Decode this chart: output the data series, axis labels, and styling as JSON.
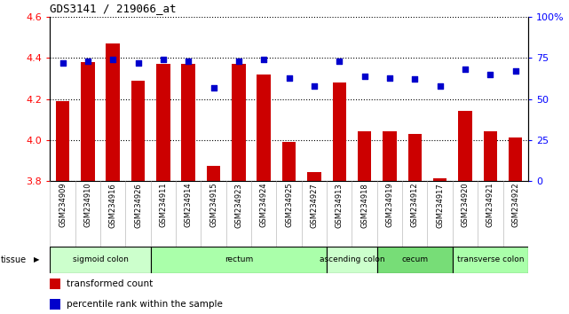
{
  "title": "GDS3141 / 219066_at",
  "samples": [
    "GSM234909",
    "GSM234910",
    "GSM234916",
    "GSM234926",
    "GSM234911",
    "GSM234914",
    "GSM234915",
    "GSM234923",
    "GSM234924",
    "GSM234925",
    "GSM234927",
    "GSM234913",
    "GSM234918",
    "GSM234919",
    "GSM234912",
    "GSM234917",
    "GSM234920",
    "GSM234921",
    "GSM234922"
  ],
  "transformed_count": [
    4.19,
    4.38,
    4.47,
    4.29,
    4.37,
    4.37,
    3.87,
    4.37,
    4.32,
    3.99,
    3.84,
    4.28,
    4.04,
    4.04,
    4.03,
    3.81,
    4.14,
    4.04,
    4.01
  ],
  "percentile_rank": [
    72,
    73,
    74,
    72,
    74,
    73,
    57,
    73,
    74,
    63,
    58,
    73,
    64,
    63,
    62,
    58,
    68,
    65,
    67
  ],
  "tissue_groups": [
    {
      "label": "sigmoid colon",
      "start": 0,
      "end": 3,
      "color": "#ccffcc"
    },
    {
      "label": "rectum",
      "start": 4,
      "end": 10,
      "color": "#aaffaa"
    },
    {
      "label": "ascending colon",
      "start": 11,
      "end": 12,
      "color": "#ccffcc"
    },
    {
      "label": "cecum",
      "start": 13,
      "end": 15,
      "color": "#77dd77"
    },
    {
      "label": "transverse colon",
      "start": 16,
      "end": 18,
      "color": "#aaffaa"
    }
  ],
  "ylim_left": [
    3.8,
    4.6
  ],
  "ylim_right": [
    0,
    100
  ],
  "yticks_left": [
    3.8,
    4.0,
    4.2,
    4.4,
    4.6
  ],
  "yticks_right": [
    0,
    25,
    50,
    75,
    100
  ],
  "bar_color": "#cc0000",
  "dot_color": "#0000cc"
}
